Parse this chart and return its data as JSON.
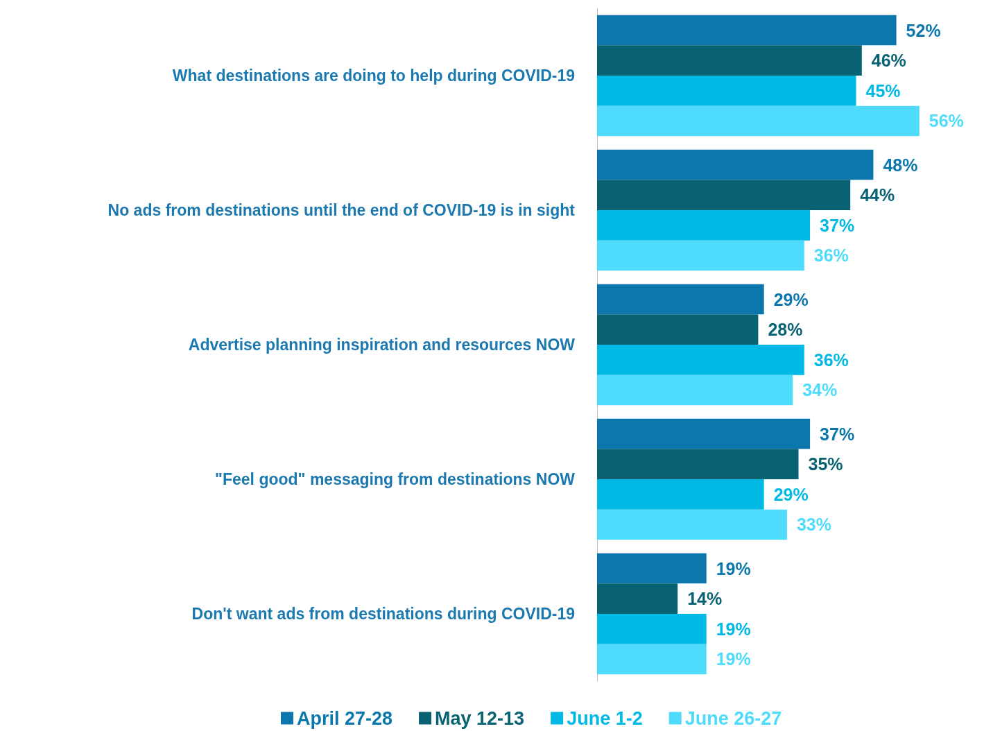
{
  "chart_data": {
    "type": "bar",
    "orientation": "horizontal",
    "categories": [
      "What destinations are doing to help during COVID-19",
      "No ads from destinations until the end of COVID-19 is in sight",
      "Advertise planning inspiration and resources NOW",
      "\"Feel good\" messaging from destinations NOW",
      "Don't want ads from destinations during COVID-19"
    ],
    "series": [
      {
        "name": "April 27-28",
        "color": "#0b77ad",
        "values": [
          52,
          48,
          29,
          37,
          19
        ],
        "value_labels": [
          "52%",
          "48%",
          "29%",
          "37%",
          "19%"
        ]
      },
      {
        "name": "May 12-13",
        "color": "#086272",
        "values": [
          46,
          44,
          28,
          35,
          14
        ],
        "value_labels": [
          "46%",
          "44%",
          "28%",
          "35%",
          "14%"
        ]
      },
      {
        "name": "June 1-2",
        "color": "#00b9e4",
        "values": [
          45,
          37,
          36,
          29,
          19
        ],
        "value_labels": [
          "45%",
          "37%",
          "36%",
          "29%",
          "19%"
        ]
      },
      {
        "name": "June 26-27",
        "color": "#4fdcfc",
        "values": [
          56,
          36,
          34,
          33,
          19
        ],
        "value_labels": [
          "56%",
          "36%",
          "34%",
          "33%",
          "19%"
        ]
      }
    ],
    "legend": "bottom"
  }
}
